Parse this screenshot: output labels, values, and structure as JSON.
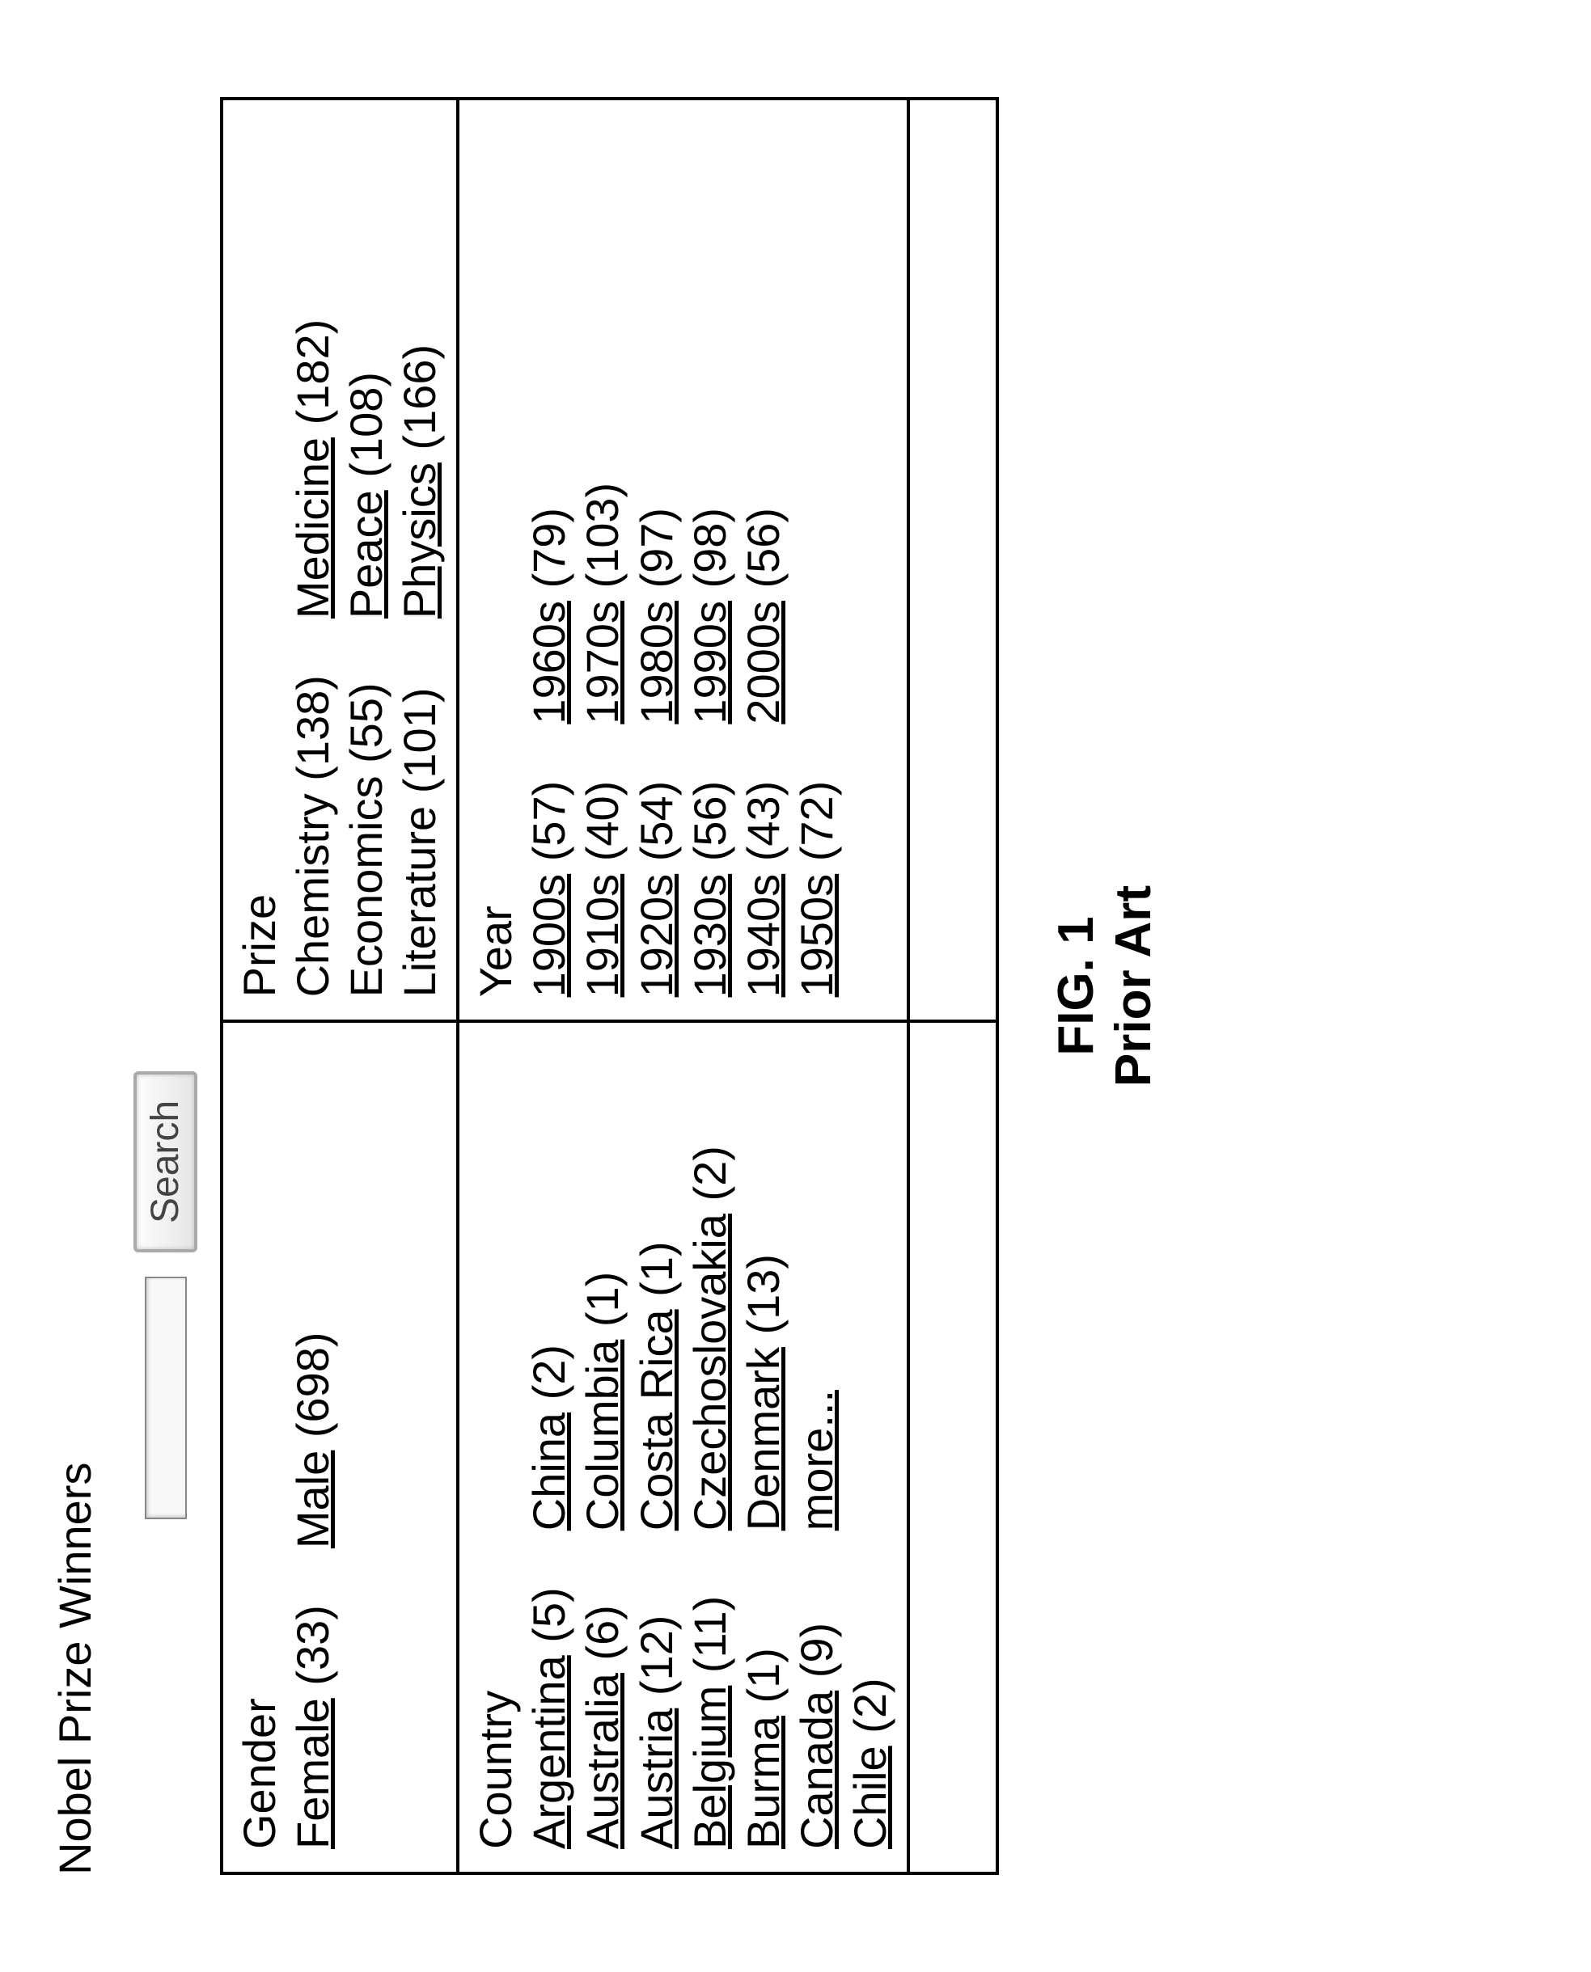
{
  "page_title": "Nobel Prize Winners",
  "search": {
    "placeholder": "",
    "button_label": "Search"
  },
  "facets": {
    "gender": {
      "heading": "Gender",
      "items_left": [
        {
          "label": "Female",
          "count": "(33)",
          "link": true
        }
      ],
      "items_right": [
        {
          "label": "Male",
          "count": "(698)",
          "link": true
        }
      ]
    },
    "prize": {
      "heading": "Prize",
      "items_left": [
        {
          "label": "Chemistry",
          "count": "(138)",
          "link": false
        },
        {
          "label": "Economics",
          "count": "(55)",
          "link": false
        },
        {
          "label": "Literature",
          "count": "(101)",
          "link": false
        }
      ],
      "items_right": [
        {
          "label": "Medicine",
          "count": "(182)",
          "link": true
        },
        {
          "label": "Peace",
          "count": "(108)",
          "link": true
        },
        {
          "label": "Physics",
          "count": "(166)",
          "link": true
        }
      ]
    },
    "country": {
      "heading": "Country",
      "items_left": [
        {
          "label": "Argentina",
          "count": "(5)",
          "link": true
        },
        {
          "label": "Australia",
          "count": "(6)",
          "link": true
        },
        {
          "label": "Austria",
          "count": "(12)",
          "link": true
        },
        {
          "label": "Belgium",
          "count": "(11)",
          "link": true
        },
        {
          "label": "Burma",
          "count": "(1)",
          "link": true
        },
        {
          "label": "Canada",
          "count": "(9)",
          "link": true
        },
        {
          "label": "Chile",
          "count": "(2)",
          "link": true
        }
      ],
      "items_right": [
        {
          "label": "China",
          "count": "(2)",
          "link": true
        },
        {
          "label": "Columbia",
          "count": "(1)",
          "link": true
        },
        {
          "label": "Costa Rica",
          "count": "(1)",
          "link": true
        },
        {
          "label": "Czechoslovakia",
          "count": "(2)",
          "link": true
        },
        {
          "label": "Denmark",
          "count": "(13)",
          "link": true
        },
        {
          "label": "more...",
          "count": "",
          "link": true
        }
      ]
    },
    "year": {
      "heading": "Year",
      "items_left": [
        {
          "label": "1900s",
          "count": "(57)",
          "link": true
        },
        {
          "label": "1910s",
          "count": "(40)",
          "link": true
        },
        {
          "label": "1920s",
          "count": "(54)",
          "link": true
        },
        {
          "label": "1930s",
          "count": "(56)",
          "link": true
        },
        {
          "label": "1940s",
          "count": "(43)",
          "link": true
        },
        {
          "label": "1950s",
          "count": "(72)",
          "link": true
        }
      ],
      "items_right": [
        {
          "label": "1960s",
          "count": "(79)",
          "link": true
        },
        {
          "label": "1970s",
          "count": "(103)",
          "link": true
        },
        {
          "label": "1980s",
          "count": "(97)",
          "link": true
        },
        {
          "label": "1990s",
          "count": "(98)",
          "link": true
        },
        {
          "label": "2000s",
          "count": "(56)",
          "link": true
        }
      ]
    }
  },
  "figure": {
    "line1": "FIG. 1",
    "line2": "Prior Art"
  },
  "colors": {
    "text": "#000000",
    "background": "#ffffff",
    "border": "#000000"
  }
}
